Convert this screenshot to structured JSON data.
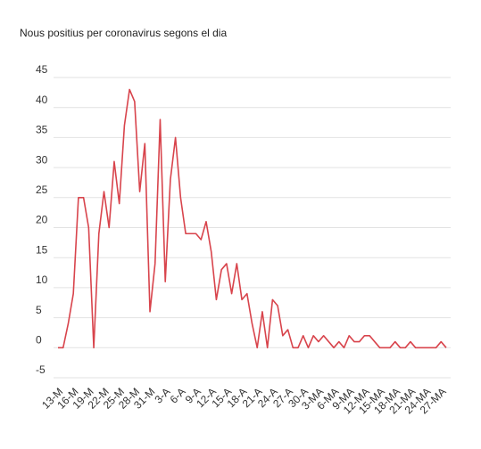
{
  "chart_data": {
    "type": "line",
    "title": "Nous positius per coronavirus segons el dia",
    "categories": [
      "13-M",
      null,
      null,
      "16-M",
      null,
      null,
      "19-M",
      null,
      null,
      "22-M",
      null,
      null,
      "25-M",
      null,
      null,
      "28-M",
      null,
      null,
      "31-M",
      null,
      null,
      "3-A",
      null,
      null,
      "6-A",
      null,
      null,
      "9-A",
      null,
      null,
      "12-A",
      null,
      null,
      "15-A",
      null,
      null,
      "18-A",
      null,
      null,
      "21-A",
      null,
      null,
      "24-A",
      null,
      null,
      "27-A",
      null,
      null,
      "30-A",
      null,
      null,
      "3-MA",
      null,
      null,
      "6-MA",
      null,
      null,
      "9-MA",
      null,
      null,
      "12-MA",
      null,
      null,
      "15-MA",
      null,
      null,
      "18-MA",
      null,
      null,
      "21-MA",
      null,
      null,
      "24-MA",
      null,
      null,
      "27-MA",
      null
    ],
    "values": [
      0,
      0,
      4,
      9,
      25,
      25,
      20,
      0,
      19,
      26,
      20,
      31,
      24,
      37,
      43,
      41,
      26,
      34,
      6,
      14,
      38,
      11,
      28,
      35,
      25,
      19,
      19,
      19,
      18,
      21,
      16,
      8,
      13,
      14,
      9,
      14,
      8,
      9,
      4,
      0,
      6,
      0,
      8,
      7,
      2,
      3,
      0,
      0,
      2,
      0,
      2,
      1,
      2,
      1,
      0,
      1,
      0,
      2,
      1,
      1,
      2,
      2,
      1,
      0,
      0,
      0,
      1,
      0,
      0,
      1,
      0,
      0,
      0,
      0,
      0,
      1,
      0
    ],
    "color": "#d8444c",
    "ylim": [
      -5,
      45
    ],
    "yticks": [
      -5,
      0,
      5,
      10,
      15,
      20,
      25,
      30,
      35,
      40,
      45
    ],
    "grid": true
  }
}
